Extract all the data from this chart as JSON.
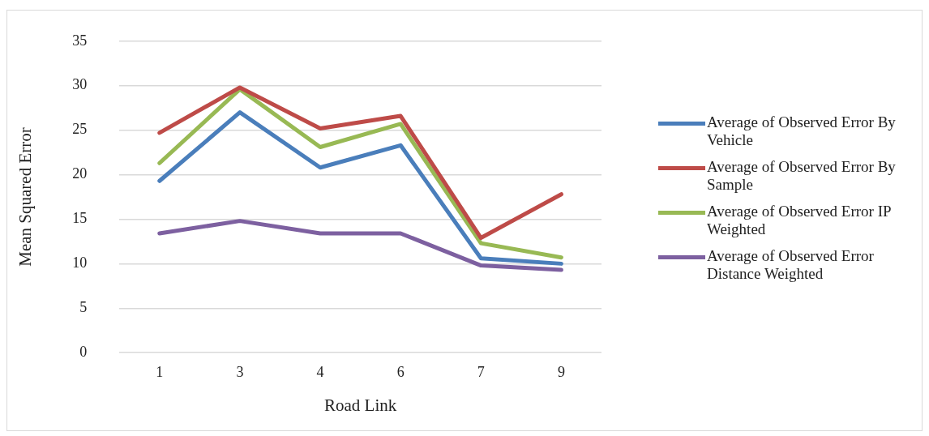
{
  "chart_data": {
    "type": "line",
    "xlabel": "Road Link",
    "ylabel": "Mean Squared Error",
    "categories": [
      "1",
      "3",
      "4",
      "6",
      "7",
      "9"
    ],
    "series": [
      {
        "name": "Average of Observed Error By Vehicle",
        "color": "#4a7ebb",
        "values": [
          19.3,
          27.0,
          20.8,
          23.3,
          10.6,
          10.0
        ]
      },
      {
        "name": "Average of Observed Error By Sample",
        "color": "#be4b48",
        "values": [
          24.7,
          29.8,
          25.2,
          26.6,
          12.9,
          17.8
        ]
      },
      {
        "name": "Average of Observed Error IP Weighted",
        "color": "#98b954",
        "values": [
          21.3,
          29.6,
          23.1,
          25.7,
          12.3,
          10.7
        ]
      },
      {
        "name": "Average of Observed Error Distance Weighted",
        "color": "#7d60a0",
        "values": [
          13.4,
          14.8,
          13.4,
          13.4,
          9.8,
          9.3
        ]
      }
    ],
    "ylim": [
      0,
      35
    ],
    "yticks": [
      0,
      5,
      10,
      15,
      20,
      25,
      30,
      35
    ],
    "grid": "y",
    "legend": "right",
    "marker": "none",
    "line_style": "solid"
  }
}
